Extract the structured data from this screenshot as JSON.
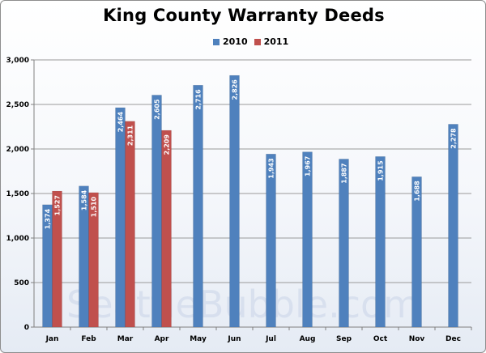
{
  "chart_data": {
    "type": "bar",
    "title": "King County Warranty Deeds",
    "categories": [
      "Jan",
      "Feb",
      "Mar",
      "Apr",
      "May",
      "Jun",
      "Jul",
      "Aug",
      "Sep",
      "Oct",
      "Nov",
      "Dec"
    ],
    "series": [
      {
        "name": "2010",
        "color": "#4f81bd",
        "values": [
          1374,
          1584,
          2464,
          2605,
          2716,
          2826,
          1943,
          1967,
          1887,
          1915,
          1688,
          2278
        ],
        "labels": [
          "1,374",
          "1,584",
          "2,464",
          "2,605",
          "2,716",
          "2,826",
          "1,943",
          "1,967",
          "1,887",
          "1,915",
          "1,688",
          "2,278"
        ]
      },
      {
        "name": "2011",
        "color": "#c0504d",
        "values": [
          1527,
          1510,
          2311,
          2209,
          null,
          null,
          null,
          null,
          null,
          null,
          null,
          null
        ],
        "labels": [
          "1,527",
          "1,510",
          "2,311",
          "2,209",
          null,
          null,
          null,
          null,
          null,
          null,
          null,
          null
        ]
      }
    ],
    "ylim": [
      0,
      3000
    ],
    "yticks": [
      0,
      500,
      1000,
      1500,
      2000,
      2500,
      3000
    ],
    "ytick_labels": [
      "0",
      "500",
      "1,000",
      "1,500",
      "2,000",
      "2,500",
      "3,000"
    ],
    "grid": "horizontal",
    "legend_position": "top-center",
    "watermark": "SeattleBubble.com"
  }
}
